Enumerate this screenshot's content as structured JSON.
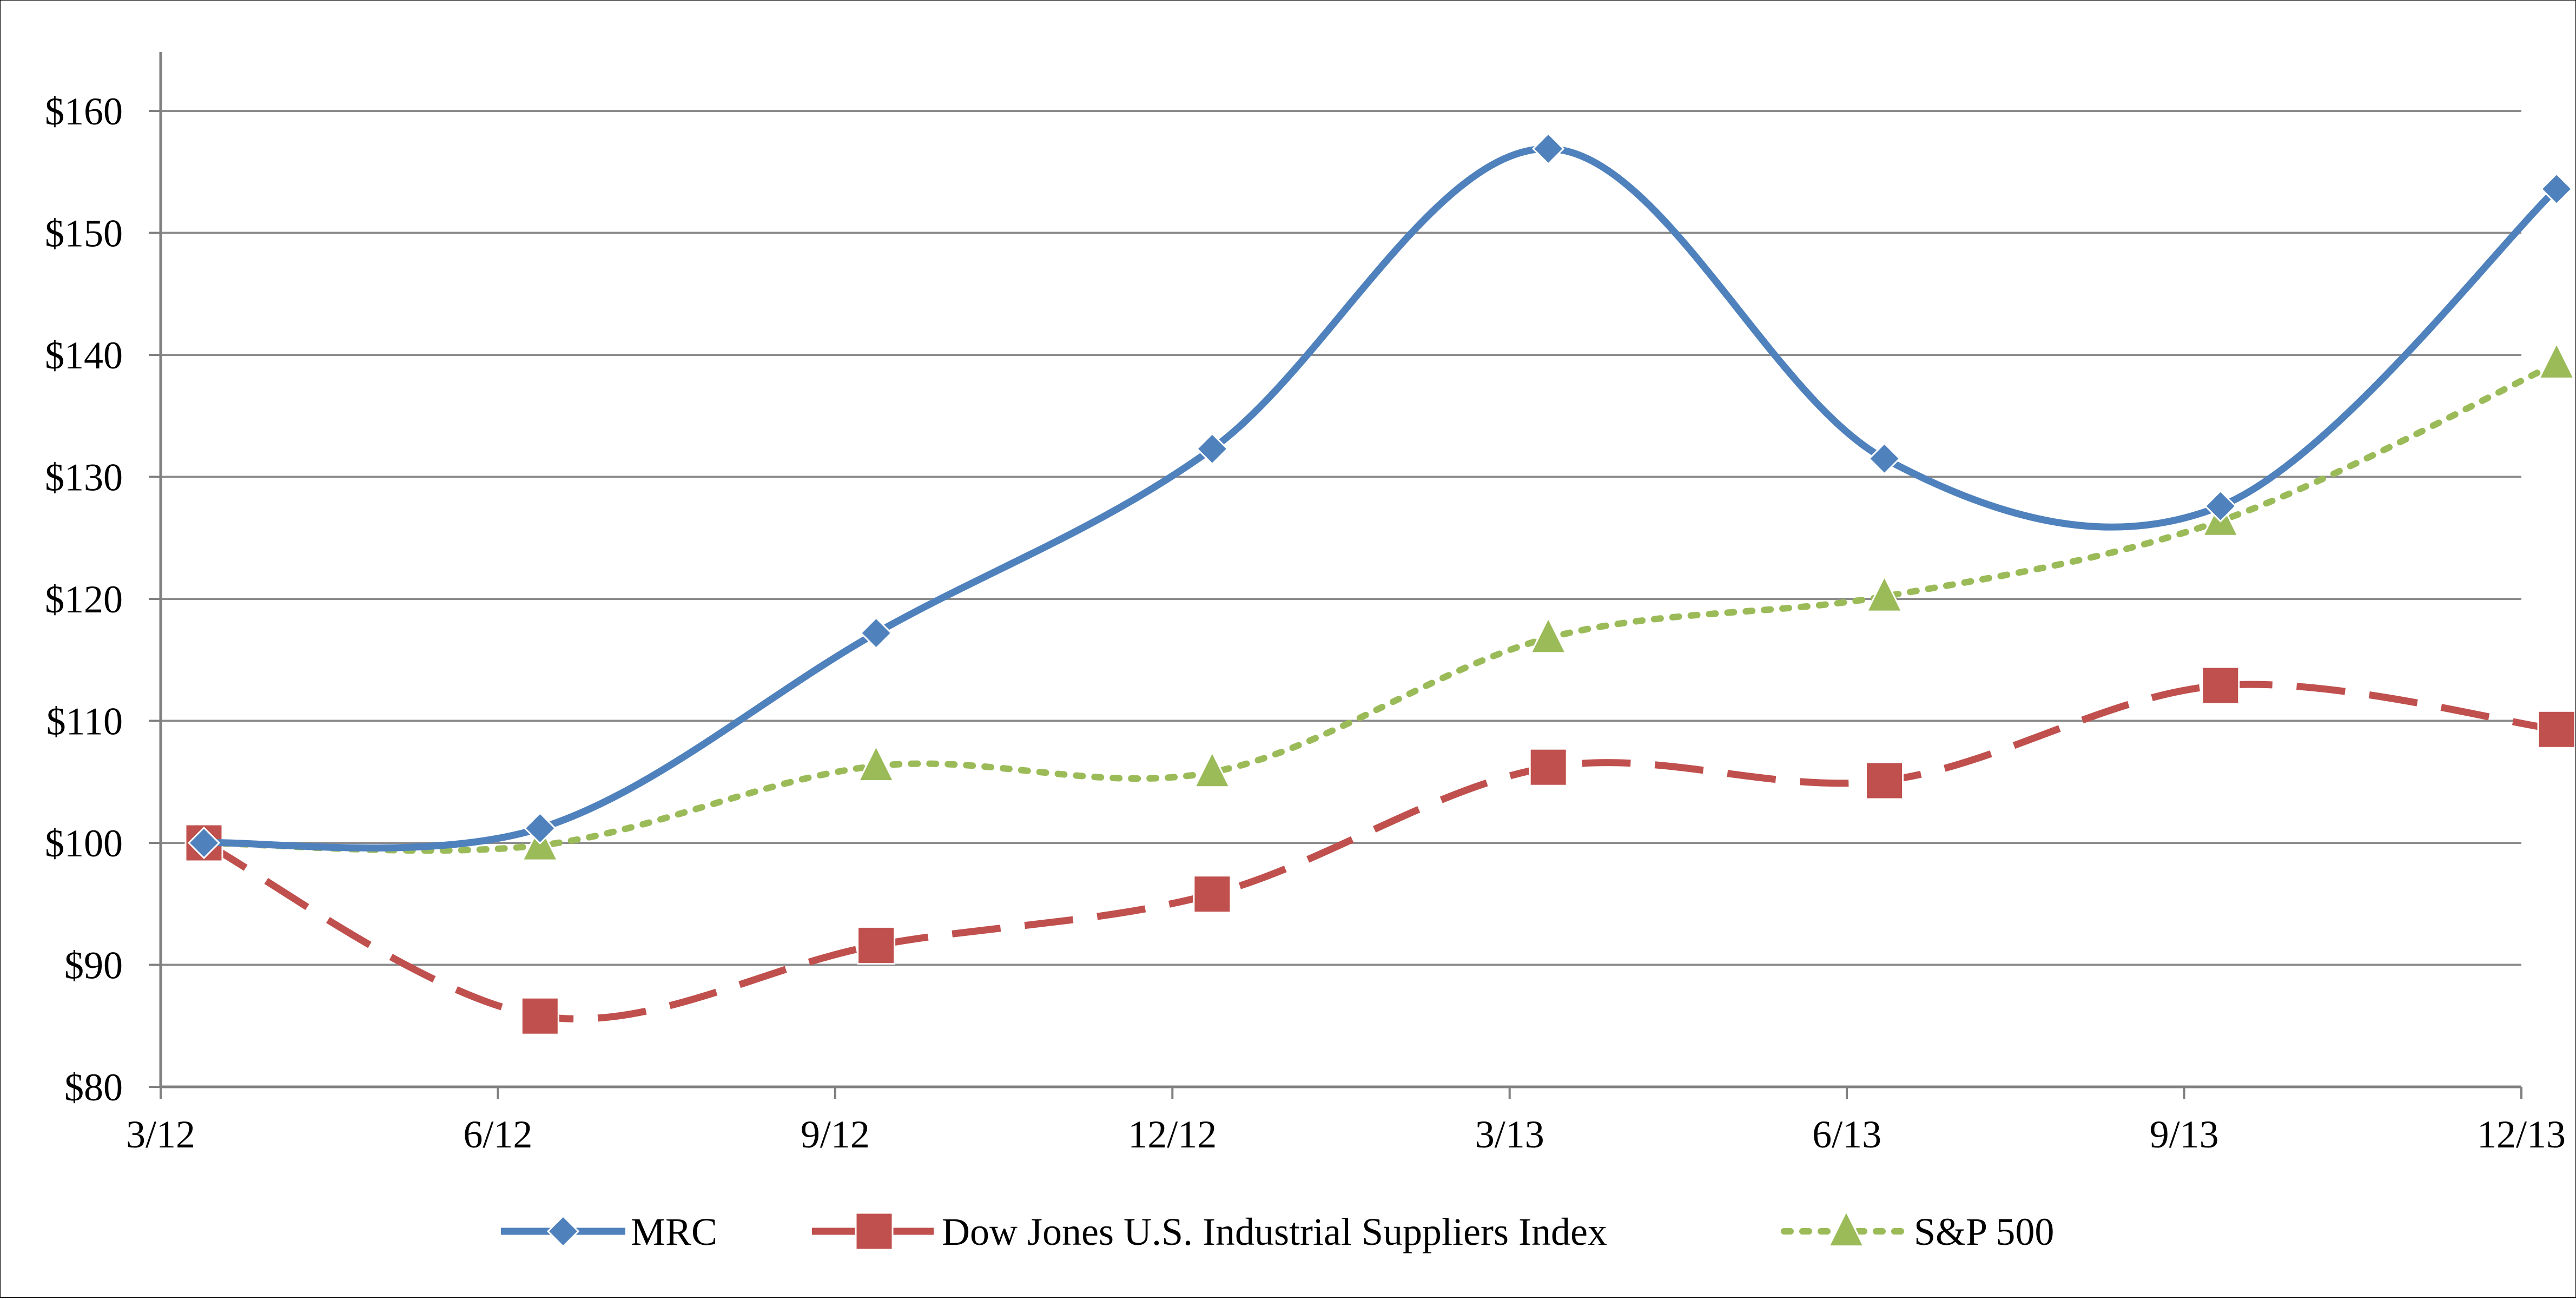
{
  "chart_data": {
    "type": "line",
    "title": "",
    "xlabel": "",
    "ylabel": "",
    "categories": [
      "3/12",
      "6/12",
      "9/12",
      "12/12",
      "3/13",
      "6/13",
      "9/13",
      "12/13"
    ],
    "y_tick_labels": [
      "$80",
      "$90",
      "$100",
      "$110",
      "$120",
      "$130",
      "$140",
      "$150",
      "$160"
    ],
    "ylim": [
      80,
      165
    ],
    "grid": true,
    "legend_position": "bottom",
    "series": [
      {
        "name": "MRC",
        "color": "#4F81BD",
        "marker": "diamond",
        "line_style": "solid",
        "values": [
          100.0,
          101.2,
          117.2,
          132.3,
          156.9,
          131.5,
          127.6,
          153.6
        ]
      },
      {
        "name": "Dow Jones U.S. Industrial Suppliers Index",
        "color": "#C0504D",
        "marker": "square",
        "line_style": "dashed",
        "values": [
          100.0,
          85.8,
          91.6,
          95.8,
          106.2,
          105.1,
          112.9,
          109.3
        ]
      },
      {
        "name": "S&P 500",
        "color": "#9BBB59",
        "marker": "triangle",
        "line_style": "dotted",
        "values": [
          100.0,
          99.8,
          106.3,
          105.8,
          116.8,
          120.2,
          126.4,
          139.3
        ]
      }
    ]
  }
}
